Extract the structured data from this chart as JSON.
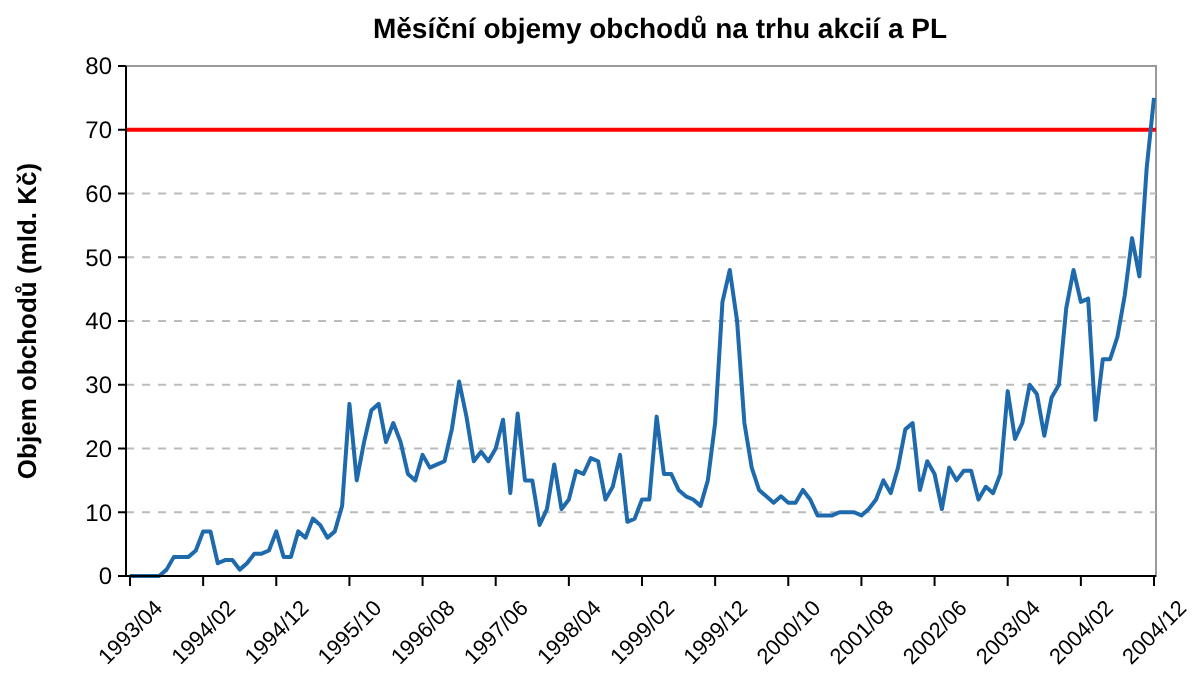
{
  "chart_data": {
    "type": "line",
    "title": "Měsíční objemy obchodů na trhu akcií a PL",
    "ylabel": "Objem obchodů (mld. Kč)",
    "categories": [
      "1993/04",
      null,
      null,
      null,
      null,
      null,
      null,
      null,
      null,
      null,
      "1994/02",
      null,
      null,
      null,
      null,
      null,
      null,
      null,
      null,
      null,
      "1994/12",
      null,
      null,
      null,
      null,
      null,
      null,
      null,
      null,
      null,
      "1995/10",
      null,
      null,
      null,
      null,
      null,
      null,
      null,
      null,
      null,
      "1996/08",
      null,
      null,
      null,
      null,
      null,
      null,
      null,
      null,
      null,
      "1997/06",
      null,
      null,
      null,
      null,
      null,
      null,
      null,
      null,
      null,
      "1998/04",
      null,
      null,
      null,
      null,
      null,
      null,
      null,
      null,
      null,
      "1999/02",
      null,
      null,
      null,
      null,
      null,
      null,
      null,
      null,
      null,
      "1999/12",
      null,
      null,
      null,
      null,
      null,
      null,
      null,
      null,
      null,
      "2000/10",
      null,
      null,
      null,
      null,
      null,
      null,
      null,
      null,
      null,
      "2001/08",
      null,
      null,
      null,
      null,
      null,
      null,
      null,
      null,
      null,
      "2002/06",
      null,
      null,
      null,
      null,
      null,
      null,
      null,
      null,
      null,
      "2003/04",
      null,
      null,
      null,
      null,
      null,
      null,
      null,
      null,
      null,
      "2004/02",
      null,
      null,
      null,
      null,
      null,
      null,
      null,
      null,
      null,
      "2004/12"
    ],
    "series": [
      {
        "color": "#1f6aad",
        "values": [
          0,
          0,
          0,
          0,
          0,
          1,
          3,
          3,
          3,
          4,
          7,
          7,
          2,
          2.5,
          2.5,
          1,
          2,
          3.5,
          3.5,
          4,
          7,
          3,
          3,
          7,
          6,
          9,
          8,
          6,
          7,
          11,
          27,
          15,
          21,
          26,
          27,
          21,
          24,
          21,
          16,
          15,
          19,
          17,
          17.5,
          18,
          23,
          30.5,
          25,
          18,
          19.5,
          18,
          20,
          24.5,
          13,
          25.5,
          15,
          15,
          8,
          10.5,
          17.5,
          10.5,
          12,
          16.5,
          16,
          18.5,
          18,
          12,
          14,
          19,
          8.5,
          9,
          12,
          12,
          25,
          16,
          16,
          13.5,
          12.5,
          12,
          11,
          15,
          24,
          43,
          48,
          40,
          24,
          17,
          13.5,
          12.5,
          11.5,
          12.5,
          11.5,
          11.5,
          13.5,
          12,
          9.5,
          9.5,
          9.5,
          10,
          10,
          10,
          9.5,
          10.5,
          12,
          15,
          13,
          17,
          23,
          24,
          13.5,
          18,
          16,
          10.5,
          17,
          15,
          16.5,
          16.5,
          12,
          14,
          13,
          16,
          29,
          21.5,
          24,
          30,
          28.5,
          22,
          28,
          30,
          42,
          48,
          43,
          43.5,
          24.5,
          34,
          34,
          37.5,
          44,
          53,
          47,
          64,
          75
        ]
      }
    ],
    "ylim": [
      0,
      80
    ],
    "yticks": [
      0,
      10,
      20,
      30,
      40,
      50,
      60,
      70,
      80
    ],
    "grid": "y",
    "line_style": "solid",
    "ref_lines": [
      {
        "axis": "y",
        "value": 70,
        "color": "#ff0000"
      }
    ]
  }
}
